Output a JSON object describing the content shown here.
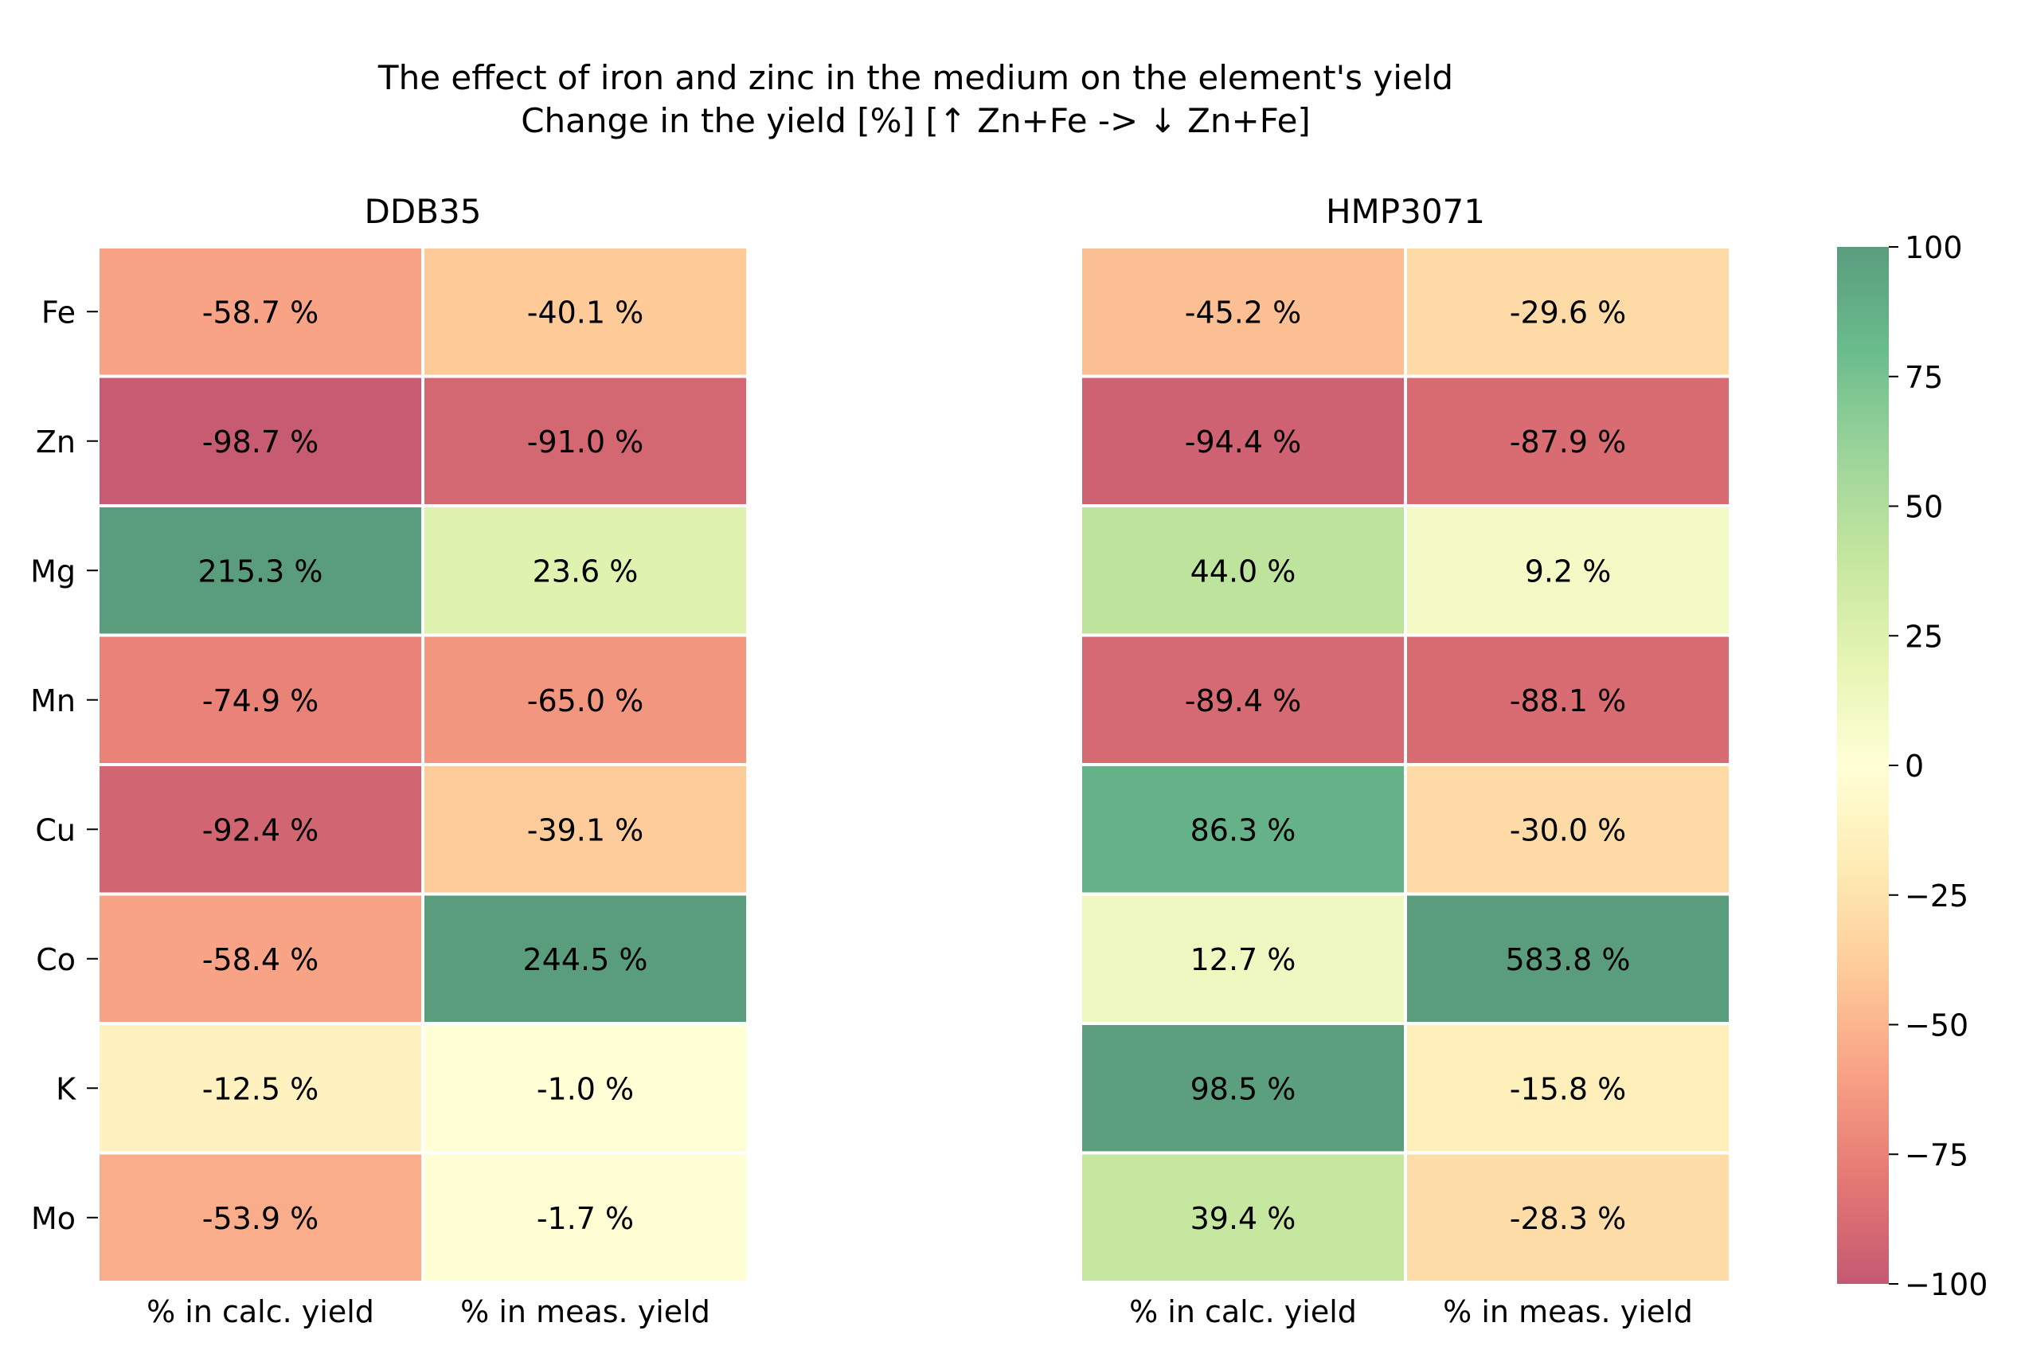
{
  "chart_data": {
    "type": "heatmap",
    "title": "The effect of iron and zinc in the medium on the element's yield",
    "subtitle": "Change in the yield [%] [↑ Zn+Fe -> ↓ Zn+Fe]",
    "rows": [
      "Fe",
      "Zn",
      "Mg",
      "Mn",
      "Cu",
      "Co",
      "K",
      "Mo"
    ],
    "columns": [
      "% in calc. yield",
      "% in meas. yield"
    ],
    "value_suffix": " %",
    "panels": [
      {
        "title": "DDB35",
        "values": [
          [
            -58.7,
            -40.1
          ],
          [
            -98.7,
            -91.0
          ],
          [
            215.3,
            23.6
          ],
          [
            -74.9,
            -65.0
          ],
          [
            -92.4,
            -39.1
          ],
          [
            -58.4,
            244.5
          ],
          [
            -12.5,
            -1.0
          ],
          [
            -53.9,
            -1.7
          ]
        ]
      },
      {
        "title": "HMP3071",
        "values": [
          [
            -45.2,
            -29.6
          ],
          [
            -94.4,
            -87.9
          ],
          [
            44.0,
            9.2
          ],
          [
            -89.4,
            -88.1
          ],
          [
            86.3,
            -30.0
          ],
          [
            12.7,
            583.8
          ],
          [
            98.5,
            -15.8
          ],
          [
            39.4,
            -28.3
          ]
        ]
      }
    ],
    "colorbar": {
      "vmin": -100,
      "vmax": 100,
      "ticks": [
        100,
        75,
        50,
        25,
        0,
        -25,
        -50,
        -75,
        -100
      ],
      "tick_labels": [
        "100",
        "75",
        "50",
        "25",
        "0",
        "−25",
        "−50",
        "−75",
        "−100"
      ],
      "colormap": [
        "#a50026",
        "#d73027",
        "#f46d43",
        "#fdae61",
        "#fee08b",
        "#ffffbf",
        "#d9ef8b",
        "#a6d96a",
        "#66bd63",
        "#1a9850",
        "#006837"
      ],
      "alpha": 0.65
    },
    "grid": false,
    "cell_border_color": "#ffffff"
  }
}
